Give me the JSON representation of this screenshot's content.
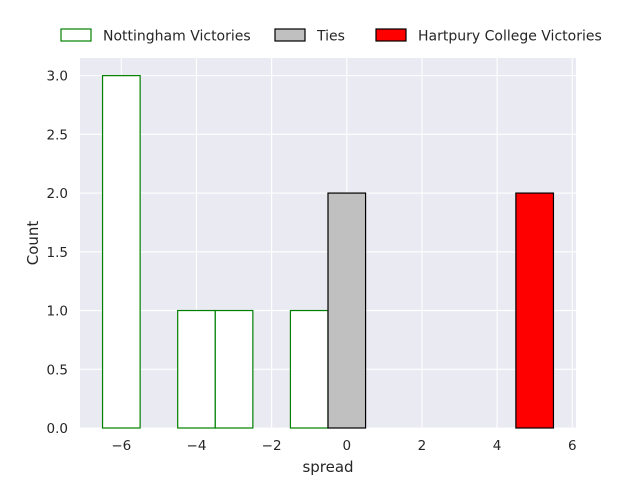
{
  "chart_data": {
    "type": "bar",
    "title": "",
    "xlabel": "spread",
    "ylabel": "Count",
    "xlim": [
      -7.1,
      6.1
    ],
    "ylim": [
      0,
      3.15
    ],
    "xticks": [
      -6,
      -4,
      -2,
      0,
      2,
      4,
      6
    ],
    "xtick_labels": [
      "−6",
      "−4",
      "−2",
      "0",
      "2",
      "4",
      "6"
    ],
    "yticks": [
      0,
      0.5,
      1,
      1.5,
      2,
      2.5,
      3
    ],
    "ytick_labels": [
      "0.0",
      "0.5",
      "1.0",
      "1.5",
      "2.0",
      "2.5",
      "3.0"
    ],
    "grid": true,
    "legend_position": "top",
    "series": [
      {
        "name": "Nottingham Victories",
        "fill": "#ffffff",
        "edge": "#008000",
        "bars": [
          {
            "x0": -6.5,
            "x1": -5.5,
            "count": 3
          },
          {
            "x0": -4.5,
            "x1": -3.5,
            "count": 1
          },
          {
            "x0": -3.5,
            "x1": -2.5,
            "count": 1
          },
          {
            "x0": -1.5,
            "x1": -0.5,
            "count": 1
          }
        ]
      },
      {
        "name": "Ties",
        "fill": "#c0c0c0",
        "edge": "#000000",
        "bars": [
          {
            "x0": -0.5,
            "x1": 0.5,
            "count": 2
          }
        ]
      },
      {
        "name": "Hartpury College Victories",
        "fill": "#ff0000",
        "edge": "#000000",
        "bars": [
          {
            "x0": 4.5,
            "x1": 5.5,
            "count": 2
          }
        ]
      }
    ]
  }
}
